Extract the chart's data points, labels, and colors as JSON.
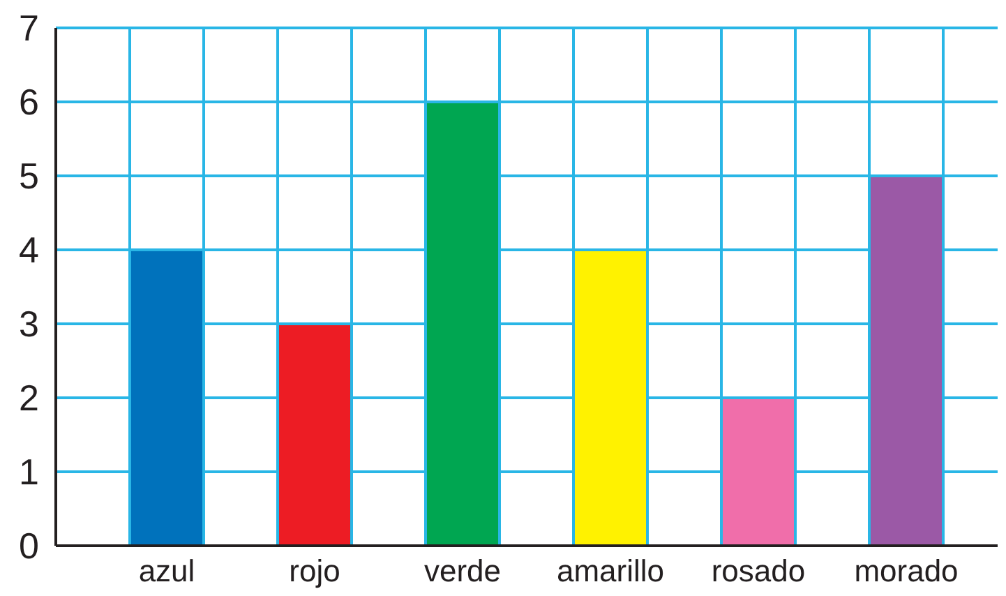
{
  "chart_data": {
    "type": "bar",
    "categories": [
      "azul",
      "rojo",
      "verde",
      "amarillo",
      "rosado",
      "morado"
    ],
    "values": [
      4,
      3,
      6,
      4,
      2,
      5
    ],
    "colors": [
      "#0072bc",
      "#ed1c24",
      "#00a651",
      "#fff200",
      "#f06eaa",
      "#9b59a6"
    ],
    "ylim": [
      0,
      7
    ],
    "yticks": [
      0,
      1,
      2,
      3,
      4,
      5,
      6,
      7
    ],
    "grid": true
  }
}
